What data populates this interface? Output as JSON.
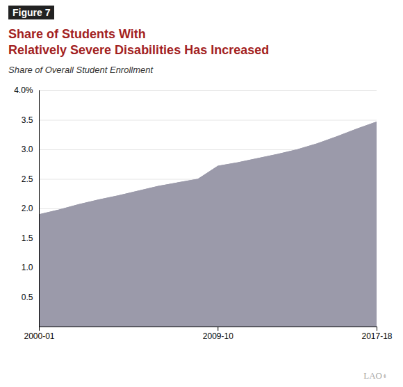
{
  "chart_data": {
    "type": "area",
    "title": "Share of Students With\nRelatively Severe Disabilities Has Increased",
    "subtitle": "Share of Overall Student Enrollment",
    "annotations": [
      "Figure 7",
      "LAO⍖"
    ],
    "x": [
      2000,
      2001,
      2002,
      2003,
      2004,
      2005,
      2006,
      2007,
      2008,
      2009,
      2010,
      2011,
      2012,
      2013,
      2014,
      2015,
      2016,
      2017
    ],
    "values": [
      1.9,
      1.98,
      2.07,
      2.15,
      2.22,
      2.3,
      2.38,
      2.44,
      2.5,
      2.72,
      2.78,
      2.85,
      2.92,
      3.0,
      3.1,
      3.22,
      3.35,
      3.47
    ],
    "color": "#9b9aaa",
    "xlim": [
      2000,
      2017
    ],
    "xticks": [
      {
        "value": 2000,
        "label": "2000-01"
      },
      {
        "value": 2009,
        "label": "2009-10"
      },
      {
        "value": 2017,
        "label": "2017-18"
      }
    ],
    "ylim": [
      0,
      4.0
    ],
    "yticks": [
      {
        "value": 0,
        "label": ""
      },
      0.5,
      {
        "value": 1.0,
        "label": "1.0"
      },
      1.5,
      {
        "value": 2.0,
        "label": "2.0"
      },
      2.5,
      {
        "value": 3.0,
        "label": "3.0"
      },
      3.5,
      {
        "value": 4.0,
        "label": "4.0%"
      }
    ],
    "grid": true
  }
}
